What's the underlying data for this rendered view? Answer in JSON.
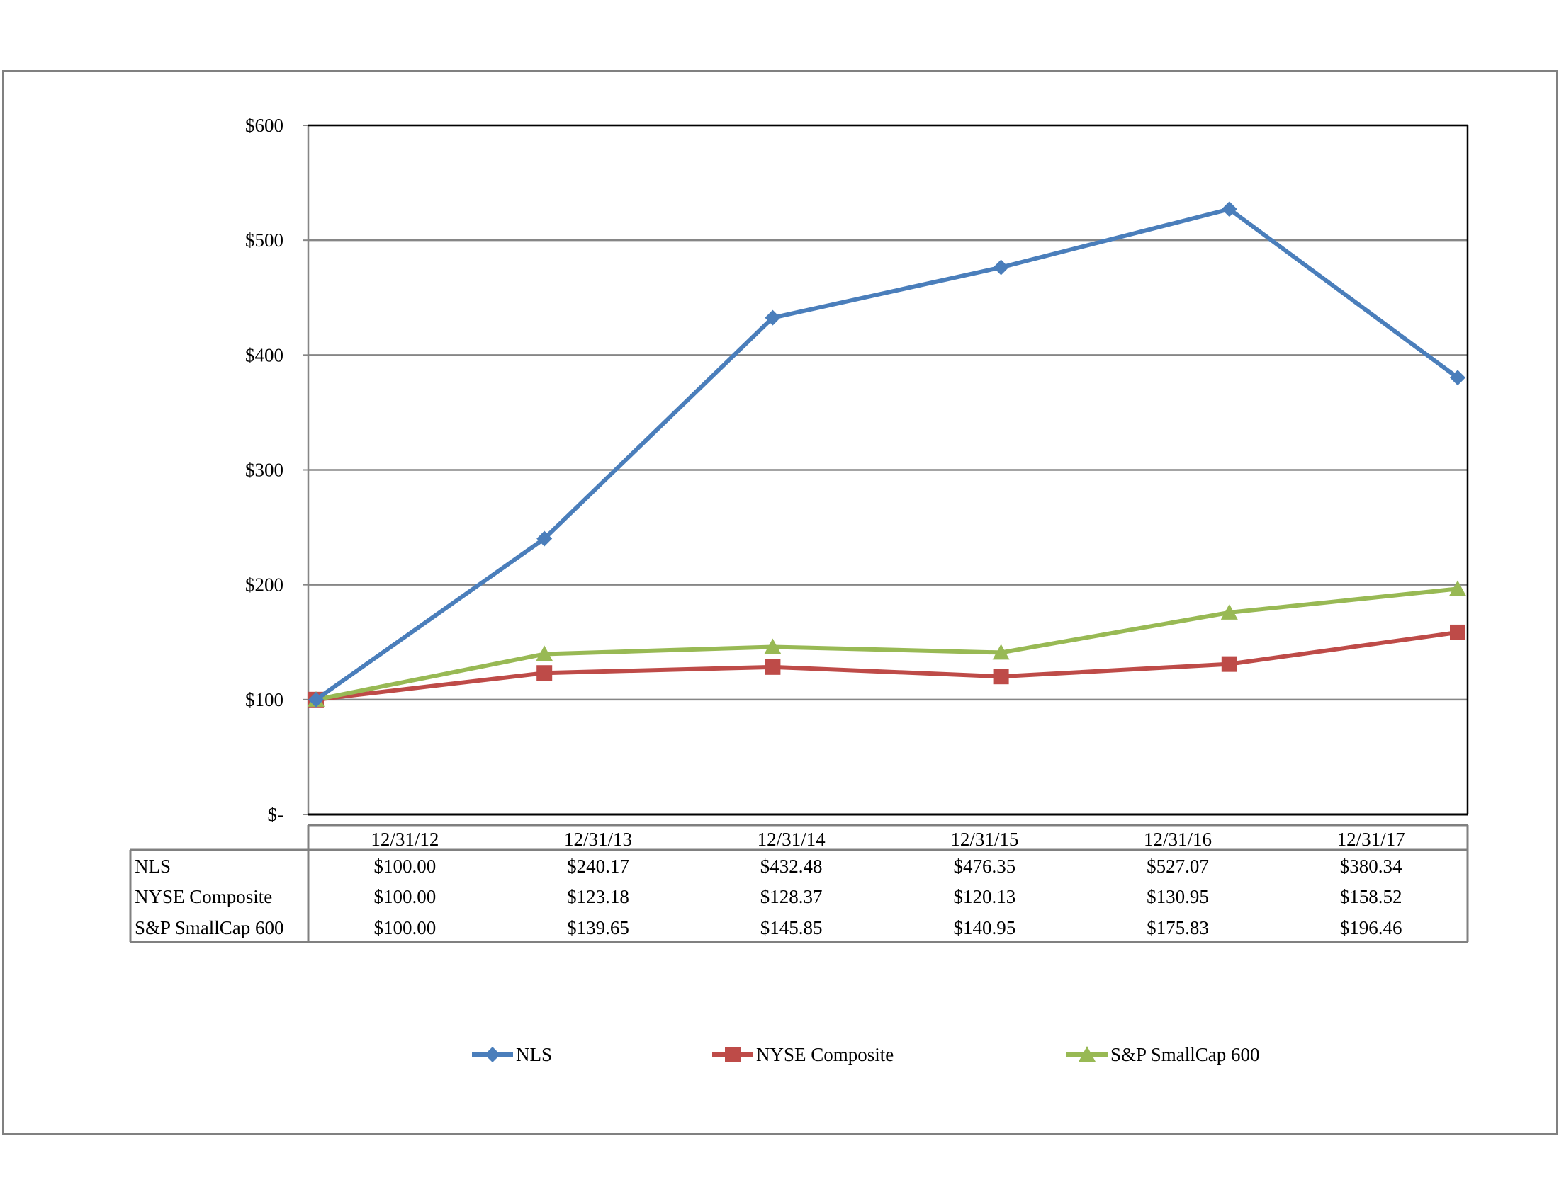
{
  "chart_data": {
    "type": "line",
    "title": "",
    "xlabel": "",
    "ylabel": "",
    "categories": [
      "12/31/12",
      "12/31/13",
      "12/31/14",
      "12/31/15",
      "12/31/16",
      "12/31/17"
    ],
    "ylim": [
      0,
      600
    ],
    "yticks": [
      0,
      100,
      200,
      300,
      400,
      500,
      600
    ],
    "ytick_labels": [
      "$-",
      "$100",
      "$200",
      "$300",
      "$400",
      "$500",
      "$600"
    ],
    "grid": true,
    "legend": "bottom",
    "series": [
      {
        "name": "NLS",
        "values": [
          100.0,
          240.17,
          432.48,
          476.35,
          527.07,
          380.34
        ],
        "labels": [
          "$100.00",
          "$240.17",
          "$432.48",
          "$476.35",
          "$527.07",
          "$380.34"
        ],
        "color": "#4a7ebb",
        "marker": "diamond"
      },
      {
        "name": "NYSE Composite",
        "values": [
          100.0,
          123.18,
          128.37,
          120.13,
          130.95,
          158.52
        ],
        "labels": [
          "$100.00",
          "$123.18",
          "$128.37",
          "$120.13",
          "$130.95",
          "$158.52"
        ],
        "color": "#be4b48",
        "marker": "square"
      },
      {
        "name": "S&P SmallCap 600",
        "values": [
          100.0,
          139.65,
          145.85,
          140.95,
          175.83,
          196.46
        ],
        "labels": [
          "$100.00",
          "$139.65",
          "$145.85",
          "$140.95",
          "$175.83",
          "$196.46"
        ],
        "color": "#98b954",
        "marker": "triangle"
      }
    ]
  }
}
